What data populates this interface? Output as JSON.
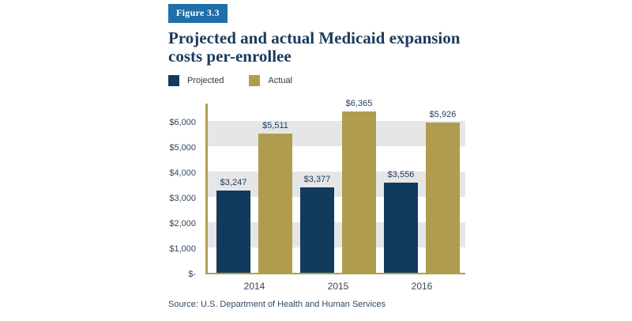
{
  "header": {
    "figure_label": "Figure 3.3",
    "title": "Projected and actual Medicaid expansion costs per-enrollee",
    "title_lines": [
      "Projected and actual Medicaid expansion",
      "costs per-enrollee"
    ]
  },
  "legend": {
    "projected": "Projected",
    "actual": "Actual"
  },
  "source": "Source: U.S. Department of Health and Human Services",
  "colors": {
    "navy": "#123A5C",
    "gold": "#B09C4F",
    "badge_blue": "#1F6FA8",
    "stripe_gray": "#E6E6E6",
    "axis_gold": "#B3A04B",
    "title_navy": "#1A3A5C"
  },
  "chart_data": {
    "type": "bar",
    "title": "Projected and actual Medicaid expansion costs per-enrollee",
    "categories": [
      "2014",
      "2015",
      "2016"
    ],
    "series": [
      {
        "name": "Projected",
        "color": "#123A5C",
        "values": [
          3247,
          3377,
          3556
        ],
        "labels": [
          "$3,247",
          "$3,377",
          "$3,556"
        ]
      },
      {
        "name": "Actual",
        "color": "#B09C4F",
        "values": [
          5511,
          6365,
          5926
        ],
        "labels": [
          "$5,511",
          "$6,365",
          "$5,926"
        ]
      }
    ],
    "y_ticks": [
      "$-",
      "$1,000",
      "$2,000",
      "$3,000",
      "$4,000",
      "$5,000",
      "$6,000"
    ],
    "y_tick_values": [
      0,
      1000,
      2000,
      3000,
      4000,
      5000,
      6000
    ],
    "ylim": [
      0,
      6750
    ],
    "stripe_bands": [
      [
        1000,
        2000
      ],
      [
        3000,
        4000
      ],
      [
        5000,
        6000
      ]
    ],
    "grid": "banded-horizontal",
    "legend_position": "top-left",
    "xlabel": "",
    "ylabel": ""
  }
}
